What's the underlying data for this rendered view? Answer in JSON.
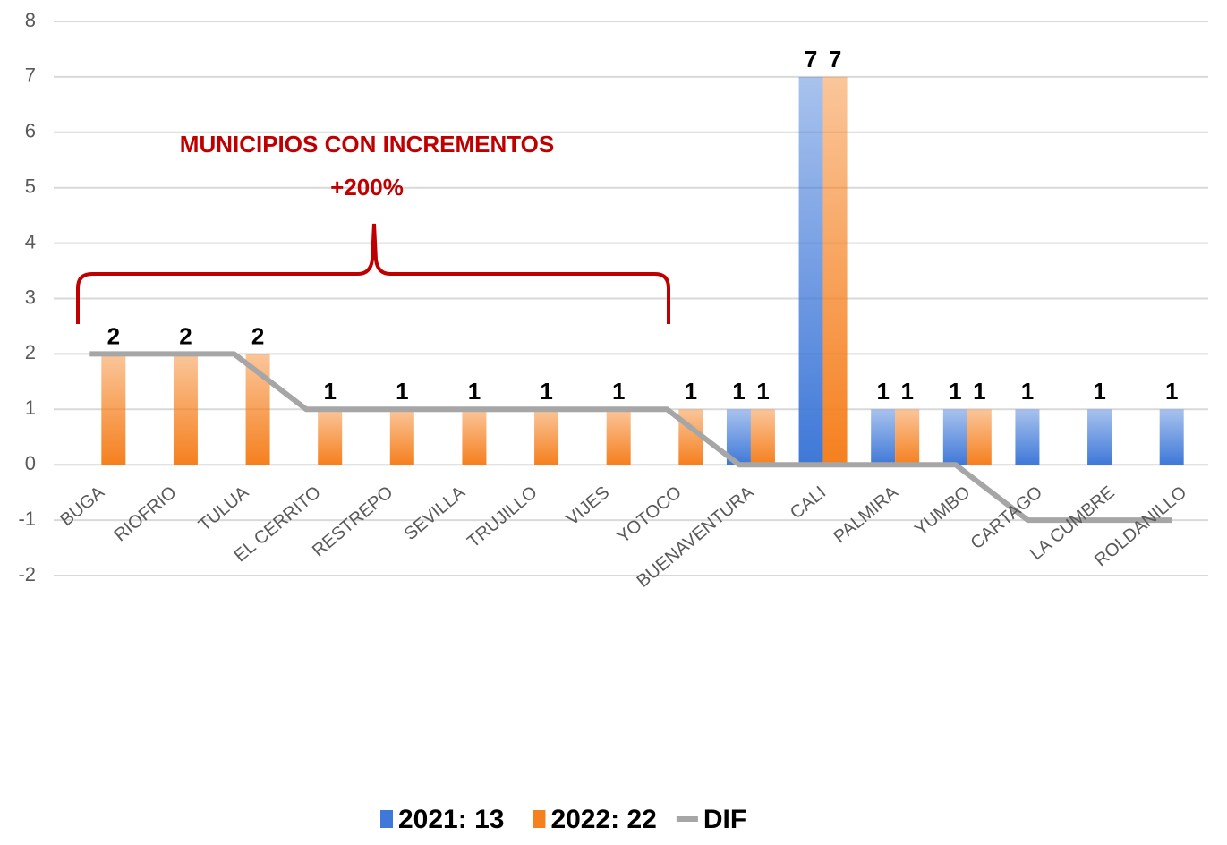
{
  "chart_data": {
    "type": "bar",
    "annotation": [
      "MUNICIPIOS CON INCREMENTOS",
      "+200%"
    ],
    "categories": [
      "BUGA",
      "RIOFRIO",
      "TULUA",
      "EL CERRITO",
      "RESTREPO",
      "SEVILLA",
      "TRUJILLO",
      "VIJES",
      "YOTOCO",
      "BUENAVENTURA",
      "CALI",
      "PALMIRA",
      "YUMBO",
      "CARTAGO",
      "LA CUMBRE",
      "ROLDANILLO"
    ],
    "series": [
      {
        "name": "2021: 13",
        "type": "bar",
        "color": "#3f78d8",
        "values": [
          null,
          null,
          null,
          null,
          null,
          null,
          null,
          null,
          null,
          1,
          7,
          1,
          1,
          1,
          1,
          1
        ]
      },
      {
        "name": "2022: 22",
        "type": "bar",
        "color": "#f5801f",
        "values": [
          2,
          2,
          2,
          1,
          1,
          1,
          1,
          1,
          1,
          1,
          7,
          1,
          1,
          null,
          null,
          null
        ]
      },
      {
        "name": "DIF",
        "type": "line",
        "color": "#a6a6a6",
        "values": [
          2,
          2,
          2,
          1,
          1,
          1,
          1,
          1,
          1,
          0,
          0,
          0,
          0,
          -1,
          -1,
          -1
        ]
      }
    ],
    "ylim": [
      -2,
      8
    ],
    "yticks": [
      -2,
      -1,
      0,
      1,
      2,
      3,
      4,
      5,
      6,
      7,
      8
    ],
    "grid": true,
    "legend": "bottom"
  }
}
